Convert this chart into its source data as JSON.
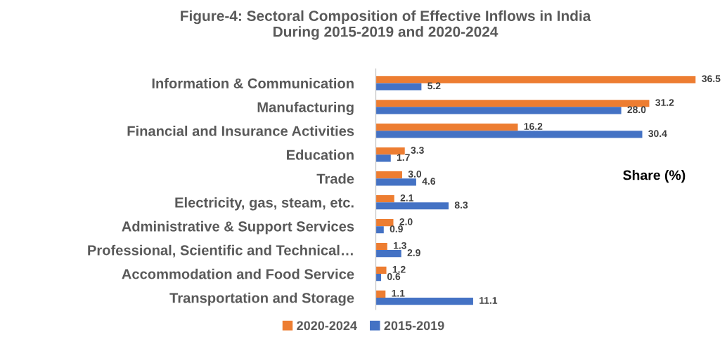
{
  "chart_data": {
    "type": "bar",
    "orientation": "horizontal",
    "title": "Figure-4: Sectoral Composition of Effective Inflows in India\nDuring 2015-2019 and 2020-2024",
    "xlabel": "Share (%)",
    "categories": [
      "Information & Communication",
      "Manufacturing",
      "Financial and Insurance Activities",
      "Education",
      "Trade",
      "Electricity, gas, steam, etc.",
      "Administrative & Support Services",
      "Professional, Scientific and Technical…",
      "Accommodation and Food Service",
      "Transportation and Storage"
    ],
    "series": [
      {
        "name": "2020-2024",
        "color": "#ed7d31",
        "values": [
          36.5,
          31.2,
          16.2,
          3.3,
          3.0,
          2.1,
          2.0,
          1.3,
          1.2,
          1.1
        ],
        "value_labels": [
          "36.5",
          "31.2",
          "16.2",
          "3.3",
          "3.0",
          "2.1",
          "2.0",
          "1.3",
          "1.2",
          "1.1"
        ]
      },
      {
        "name": "2015-2019",
        "color": "#4472c4",
        "values": [
          5.2,
          28.0,
          30.4,
          1.7,
          4.6,
          8.3,
          0.9,
          2.9,
          0.6,
          11.1
        ],
        "value_labels": [
          "5.2",
          "28.0",
          "30.4",
          "1.7",
          "4.6",
          "8.3",
          "0.9",
          "2.9",
          "0.6",
          "11.1"
        ]
      }
    ],
    "legend": "bottom",
    "grid": false,
    "tick_labels": "y"
  }
}
